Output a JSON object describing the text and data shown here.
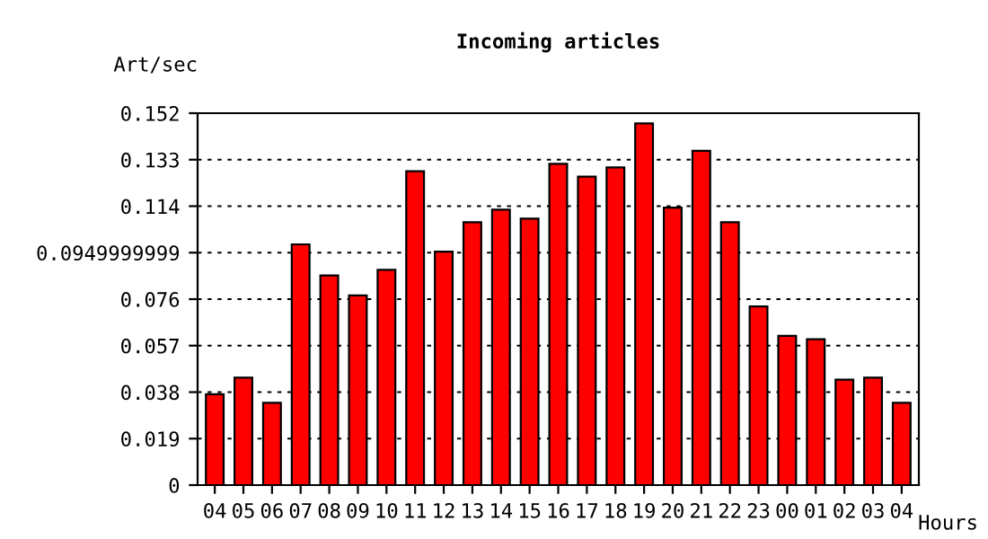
{
  "chart_data": {
    "type": "bar",
    "title": "Incoming articles",
    "xlabel": "Hours",
    "ylabel": "Art/sec",
    "categories": [
      "04",
      "05",
      "06",
      "07",
      "08",
      "09",
      "10",
      "11",
      "12",
      "13",
      "14",
      "15",
      "16",
      "17",
      "18",
      "19",
      "20",
      "21",
      "22",
      "23",
      "00",
      "01",
      "02",
      "03",
      "04"
    ],
    "values": [
      0.0371,
      0.0439,
      0.0336,
      0.0984,
      0.0857,
      0.0775,
      0.088,
      0.1283,
      0.0954,
      0.1074,
      0.1126,
      0.1089,
      0.1313,
      0.1261,
      0.1298,
      0.1478,
      0.1134,
      0.1366,
      0.1074,
      0.073,
      0.061,
      0.0596,
      0.0431,
      0.0439,
      0.0336
    ],
    "color": "#ff0000",
    "ylim": [
      0,
      0.152
    ],
    "yticks": [
      0,
      0.019,
      0.038,
      0.057,
      0.076,
      0.0949999999,
      0.114,
      0.133,
      0.152
    ],
    "grid": "y",
    "legend": false
  }
}
